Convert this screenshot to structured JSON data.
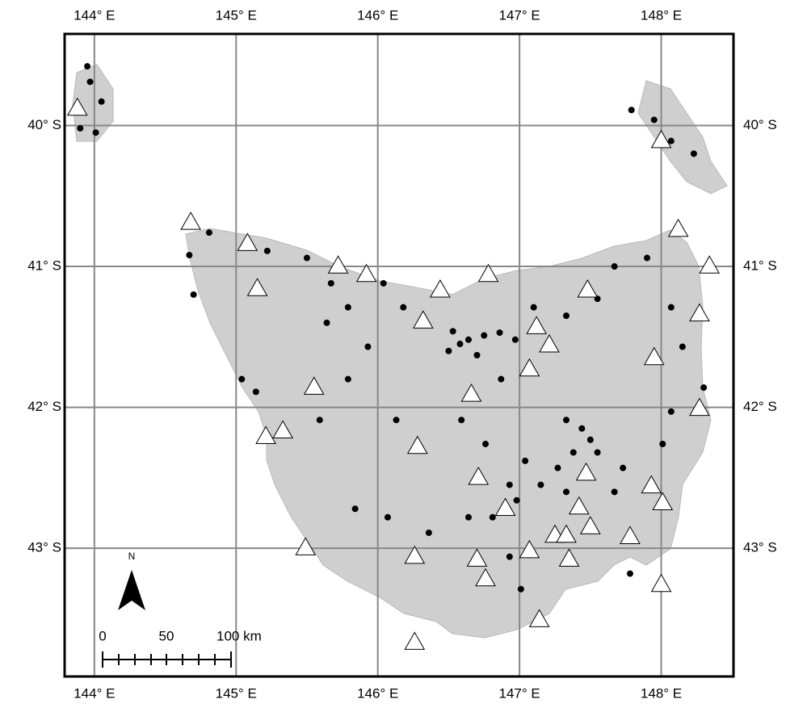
{
  "chart_data": {
    "type": "map",
    "xlim": [
      143.79,
      148.51
    ],
    "ylim": [
      -43.91,
      -39.35
    ],
    "xticks": [
      {
        "value": 144,
        "label": "144° E"
      },
      {
        "value": 145,
        "label": "145° E"
      },
      {
        "value": 146,
        "label": "146° E"
      },
      {
        "value": 147,
        "label": "147° E"
      },
      {
        "value": 148,
        "label": "148° E"
      }
    ],
    "yticks": [
      {
        "value": -40,
        "label": "40° S"
      },
      {
        "value": -41,
        "label": "41° S"
      },
      {
        "value": -42,
        "label": "42° S"
      },
      {
        "value": -43,
        "label": "43° S"
      }
    ],
    "grid": true,
    "series": [
      {
        "marker": "circle",
        "color": "#000000",
        "x": [
          143.95,
          143.97,
          144.05,
          143.9,
          144.01,
          147.79,
          147.95,
          148.07,
          148.23,
          144.67,
          144.81,
          145.22,
          144.7,
          145.04,
          145.14,
          145.5,
          145.67,
          145.64,
          145.79,
          146.04,
          146.18,
          145.93,
          145.79,
          145.59,
          146.13,
          145.84,
          146.07,
          146.53,
          146.58,
          146.64,
          146.75,
          146.86,
          146.97,
          146.5,
          146.7,
          146.87,
          147.1,
          147.33,
          147.55,
          147.67,
          147.9,
          148.07,
          148.15,
          148.3,
          148.07,
          147.33,
          147.44,
          147.5,
          147.38,
          147.55,
          147.27,
          147.04,
          146.93,
          147.15,
          146.76,
          146.59,
          146.81,
          146.98,
          147.33,
          147.67,
          147.73,
          146.93,
          147.01,
          147.78,
          148.01,
          146.36,
          146.64
        ],
        "y": [
          -39.58,
          -39.69,
          -39.83,
          -40.02,
          -40.05,
          -39.89,
          -39.96,
          -40.11,
          -40.2,
          -40.92,
          -40.76,
          -40.89,
          -41.2,
          -41.8,
          -41.89,
          -40.94,
          -41.12,
          -41.4,
          -41.29,
          -41.12,
          -41.29,
          -41.57,
          -41.8,
          -42.09,
          -42.09,
          -42.72,
          -42.78,
          -41.46,
          -41.55,
          -41.52,
          -41.49,
          -41.47,
          -41.52,
          -41.6,
          -41.63,
          -41.8,
          -41.29,
          -41.35,
          -41.23,
          -41.0,
          -40.94,
          -41.29,
          -41.57,
          -41.86,
          -42.03,
          -42.09,
          -42.15,
          -42.23,
          -42.32,
          -42.32,
          -42.43,
          -42.38,
          -42.55,
          -42.55,
          -42.26,
          -42.09,
          -42.78,
          -42.66,
          -42.6,
          -42.6,
          -42.43,
          -43.06,
          -43.29,
          -43.18,
          -42.26,
          -42.89,
          -42.78
        ]
      },
      {
        "marker": "triangle",
        "color": "#ffffff",
        "x": [
          143.88,
          144.68,
          145.08,
          145.15,
          145.72,
          145.92,
          146.44,
          146.78,
          147.48,
          148.12,
          148.34,
          148.0,
          146.32,
          147.12,
          147.21,
          147.07,
          147.95,
          148.27,
          145.55,
          146.66,
          148.27,
          145.33,
          145.21,
          146.28,
          146.71,
          147.47,
          147.93,
          148.01,
          147.42,
          146.9,
          147.5,
          147.25,
          147.33,
          147.78,
          145.49,
          146.26,
          146.7,
          147.07,
          147.35,
          146.76,
          148.0,
          147.14,
          146.26
        ],
        "y": [
          -39.87,
          -40.68,
          -40.83,
          -41.15,
          -40.99,
          -41.05,
          -41.16,
          -41.05,
          -41.16,
          -40.73,
          -40.99,
          -40.1,
          -41.38,
          -41.42,
          -41.55,
          -41.72,
          -41.64,
          -41.33,
          -41.85,
          -41.9,
          -42.0,
          -42.16,
          -42.2,
          -42.27,
          -42.49,
          -42.46,
          -42.55,
          -42.67,
          -42.7,
          -42.71,
          -42.84,
          -42.9,
          -42.9,
          -42.91,
          -42.99,
          -43.05,
          -43.07,
          -43.01,
          -43.07,
          -43.21,
          -43.25,
          -43.5,
          -43.66
        ]
      }
    ],
    "north_arrow": "N",
    "scale_bar": {
      "labels": [
        "0",
        "50",
        "100 km"
      ]
    }
  }
}
